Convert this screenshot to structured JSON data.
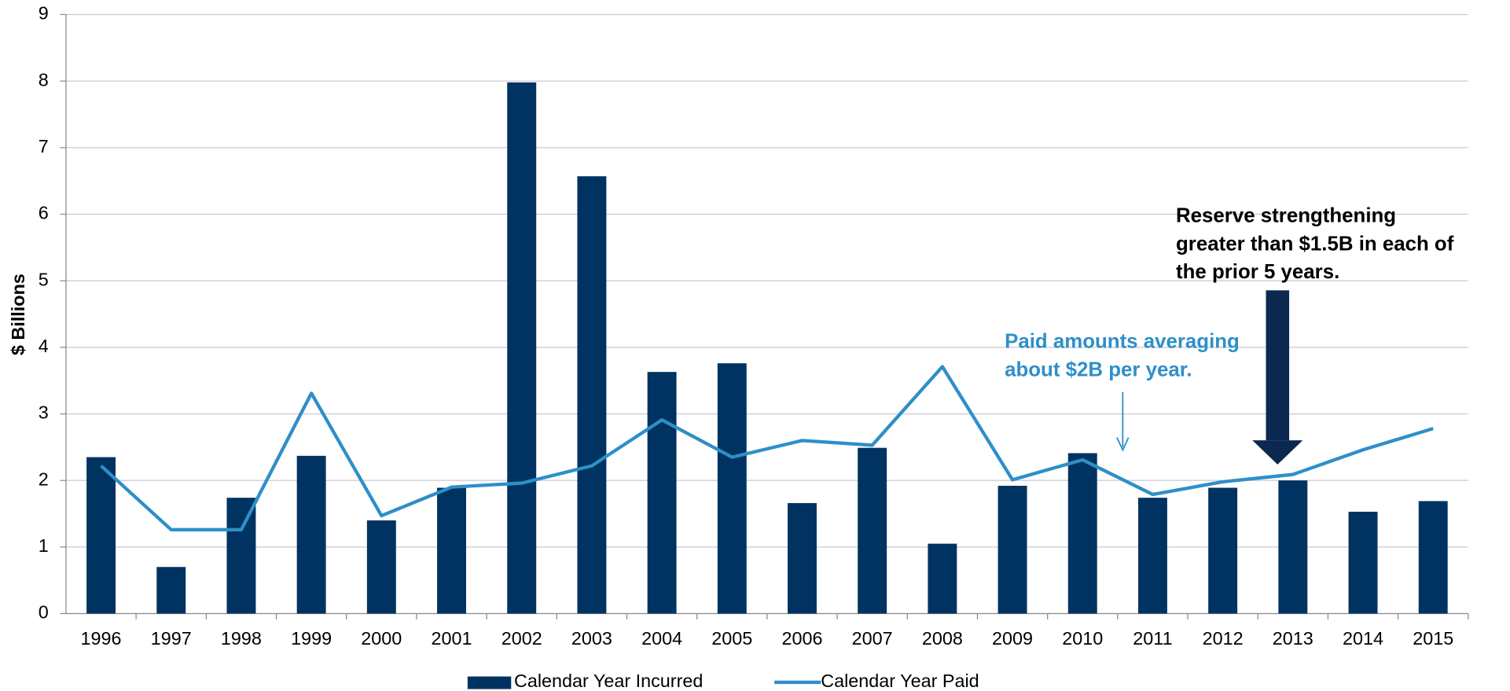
{
  "chart_data": {
    "type": "bar_line",
    "y_label": "$ Billions",
    "categories": [
      "1996",
      "1997",
      "1998",
      "1999",
      "2000",
      "2001",
      "2002",
      "2003",
      "2004",
      "2005",
      "2006",
      "2007",
      "2008",
      "2009",
      "2010",
      "2011",
      "2012",
      "2013",
      "2014",
      "2015"
    ],
    "series": [
      {
        "name": "Calendar Year Incurred",
        "type": "bar",
        "color": "#003361",
        "values": [
          2.35,
          0.7,
          1.74,
          2.37,
          1.4,
          1.89,
          7.98,
          6.57,
          3.63,
          3.76,
          1.66,
          2.49,
          1.05,
          1.92,
          2.41,
          1.74,
          1.89,
          2.0,
          1.53,
          1.69
        ]
      },
      {
        "name": "Calendar Year Paid",
        "type": "line",
        "color": "#2e8fc8",
        "values": [
          2.22,
          1.26,
          1.26,
          3.31,
          1.47,
          1.9,
          1.96,
          2.22,
          2.91,
          2.35,
          2.6,
          2.53,
          3.71,
          2.01,
          2.31,
          1.79,
          1.98,
          2.09,
          2.46,
          2.78
        ]
      }
    ],
    "ylim": [
      0,
      9
    ],
    "yticks": [
      0,
      1,
      2,
      3,
      4,
      5,
      6,
      7,
      8,
      9
    ],
    "grid": true,
    "legend": "bottom",
    "annotations": [
      {
        "lines": [
          "Reserve strengthening",
          "greater than $1.5B in each of",
          "the prior 5 years."
        ],
        "color": "#000000"
      },
      {
        "lines": [
          "Paid amounts averaging",
          "about $2B per year."
        ],
        "color": "#2e8fc8"
      }
    ]
  }
}
